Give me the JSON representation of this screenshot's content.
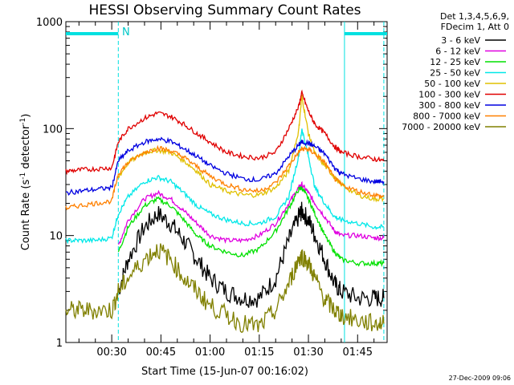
{
  "chart_data": {
    "type": "line",
    "title": "HESSI Observing Summary Count Rates",
    "xlabel": "Start Time (15-Jun-07 00:16:02)",
    "ylabel_main": "Count Rate (s",
    "ylabel_sup1": "-1",
    "ylabel_mid": " detector",
    "ylabel_sup2": "-1",
    "ylabel_end": ")",
    "yscale": "log",
    "ylim": [
      1,
      1000
    ],
    "xlim_minutes": [
      16.0,
      114.0
    ],
    "x_ticks": [
      {
        "t": 30,
        "label": "00:30"
      },
      {
        "t": 45,
        "label": "00:45"
      },
      {
        "t": 60,
        "label": "01:00"
      },
      {
        "t": 75,
        "label": "01:15"
      },
      {
        "t": 90,
        "label": "01:30"
      },
      {
        "t": 105,
        "label": "01:45"
      }
    ],
    "y_ticks": [
      {
        "v": 1,
        "label": "1"
      },
      {
        "v": 10,
        "label": "10"
      },
      {
        "v": 100,
        "label": "100"
      },
      {
        "v": 1000,
        "label": "1000"
      }
    ],
    "legend_header": [
      "Det 1,3,4,5,6,9,",
      "FDecim 1, Att 0"
    ],
    "footer_stamp": "27-Dec-2009 09:06",
    "night_marker": "N",
    "x_minutes": [
      16,
      20,
      25,
      30,
      32,
      35,
      40,
      44,
      48,
      52,
      56,
      60,
      65,
      70,
      75,
      80,
      84,
      87,
      88,
      90,
      92,
      95,
      98,
      100,
      105,
      110,
      113
    ],
    "series": [
      {
        "name": "3 - 6 keV",
        "color": "#000000",
        "values": [
          null,
          null,
          null,
          null,
          3,
          6,
          12,
          16,
          13,
          9,
          6,
          4,
          3,
          2.6,
          2.6,
          4,
          9,
          15,
          17,
          14,
          10,
          6,
          3.5,
          3.0,
          2.6,
          2.6,
          2.6
        ]
      },
      {
        "name": "6 - 12 keV",
        "color": "#e000e0",
        "values": [
          null,
          null,
          null,
          null,
          8,
          14,
          22,
          25,
          22,
          17,
          13,
          10,
          9,
          9,
          10,
          13,
          20,
          28,
          30,
          25,
          20,
          15,
          11,
          10,
          10,
          9.5,
          9.5
        ]
      },
      {
        "name": "12 - 25 keV",
        "color": "#00e000",
        "values": [
          null,
          null,
          null,
          null,
          7,
          12,
          19,
          22,
          19,
          14,
          10,
          8,
          7,
          6.5,
          7.5,
          11,
          18,
          27,
          28,
          22,
          16,
          10,
          7,
          6,
          5.5,
          5.5,
          5.5
        ]
      },
      {
        "name": "25 - 50 keV",
        "color": "#00e8e8",
        "values": [
          9,
          9,
          9,
          9.5,
          16,
          23,
          32,
          35,
          32,
          25,
          19,
          16,
          14,
          13,
          13,
          15,
          23,
          55,
          100,
          55,
          28,
          20,
          15,
          14,
          13,
          12,
          12
        ]
      },
      {
        "name": "50 - 100 keV",
        "color": "#e0c000",
        "values": [
          null,
          null,
          null,
          null,
          35,
          48,
          60,
          63,
          60,
          50,
          40,
          30,
          26,
          24,
          24,
          28,
          40,
          95,
          200,
          90,
          58,
          45,
          35,
          30,
          24,
          22,
          22
        ]
      },
      {
        "name": "100 - 300 keV",
        "color": "#e00000",
        "values": [
          40,
          41,
          42,
          43,
          75,
          100,
          125,
          140,
          130,
          110,
          90,
          75,
          60,
          55,
          53,
          60,
          100,
          160,
          215,
          145,
          110,
          90,
          68,
          60,
          55,
          52,
          50
        ]
      },
      {
        "name": "300 - 800 keV",
        "color": "#0000e0",
        "values": [
          25,
          26,
          27,
          28,
          50,
          62,
          75,
          80,
          76,
          65,
          55,
          45,
          38,
          34,
          33,
          38,
          55,
          70,
          75,
          73,
          68,
          58,
          43,
          38,
          34,
          32,
          32
        ]
      },
      {
        "name": "800 - 7000 keV",
        "color": "#ff8000",
        "values": [
          18,
          19,
          20,
          21,
          38,
          48,
          60,
          66,
          62,
          54,
          44,
          36,
          30,
          27,
          26,
          31,
          45,
          60,
          65,
          64,
          58,
          48,
          34,
          30,
          26,
          24,
          23
        ]
      },
      {
        "name": "7000 - 20000 keV",
        "color": "#808000",
        "values": [
          2,
          2,
          2,
          2,
          3,
          4,
          6,
          7.5,
          6,
          4,
          3,
          2.2,
          1.8,
          1.5,
          1.4,
          2,
          3.5,
          6,
          6.5,
          5.5,
          4,
          2.5,
          2,
          1.8,
          1.6,
          1.5,
          1.5
        ]
      }
    ],
    "spacecraft_night": [
      {
        "start": 16,
        "end": 32
      },
      {
        "start": 101,
        "end": 114
      }
    ],
    "segment_boundaries": [
      32,
      101,
      113
    ]
  }
}
